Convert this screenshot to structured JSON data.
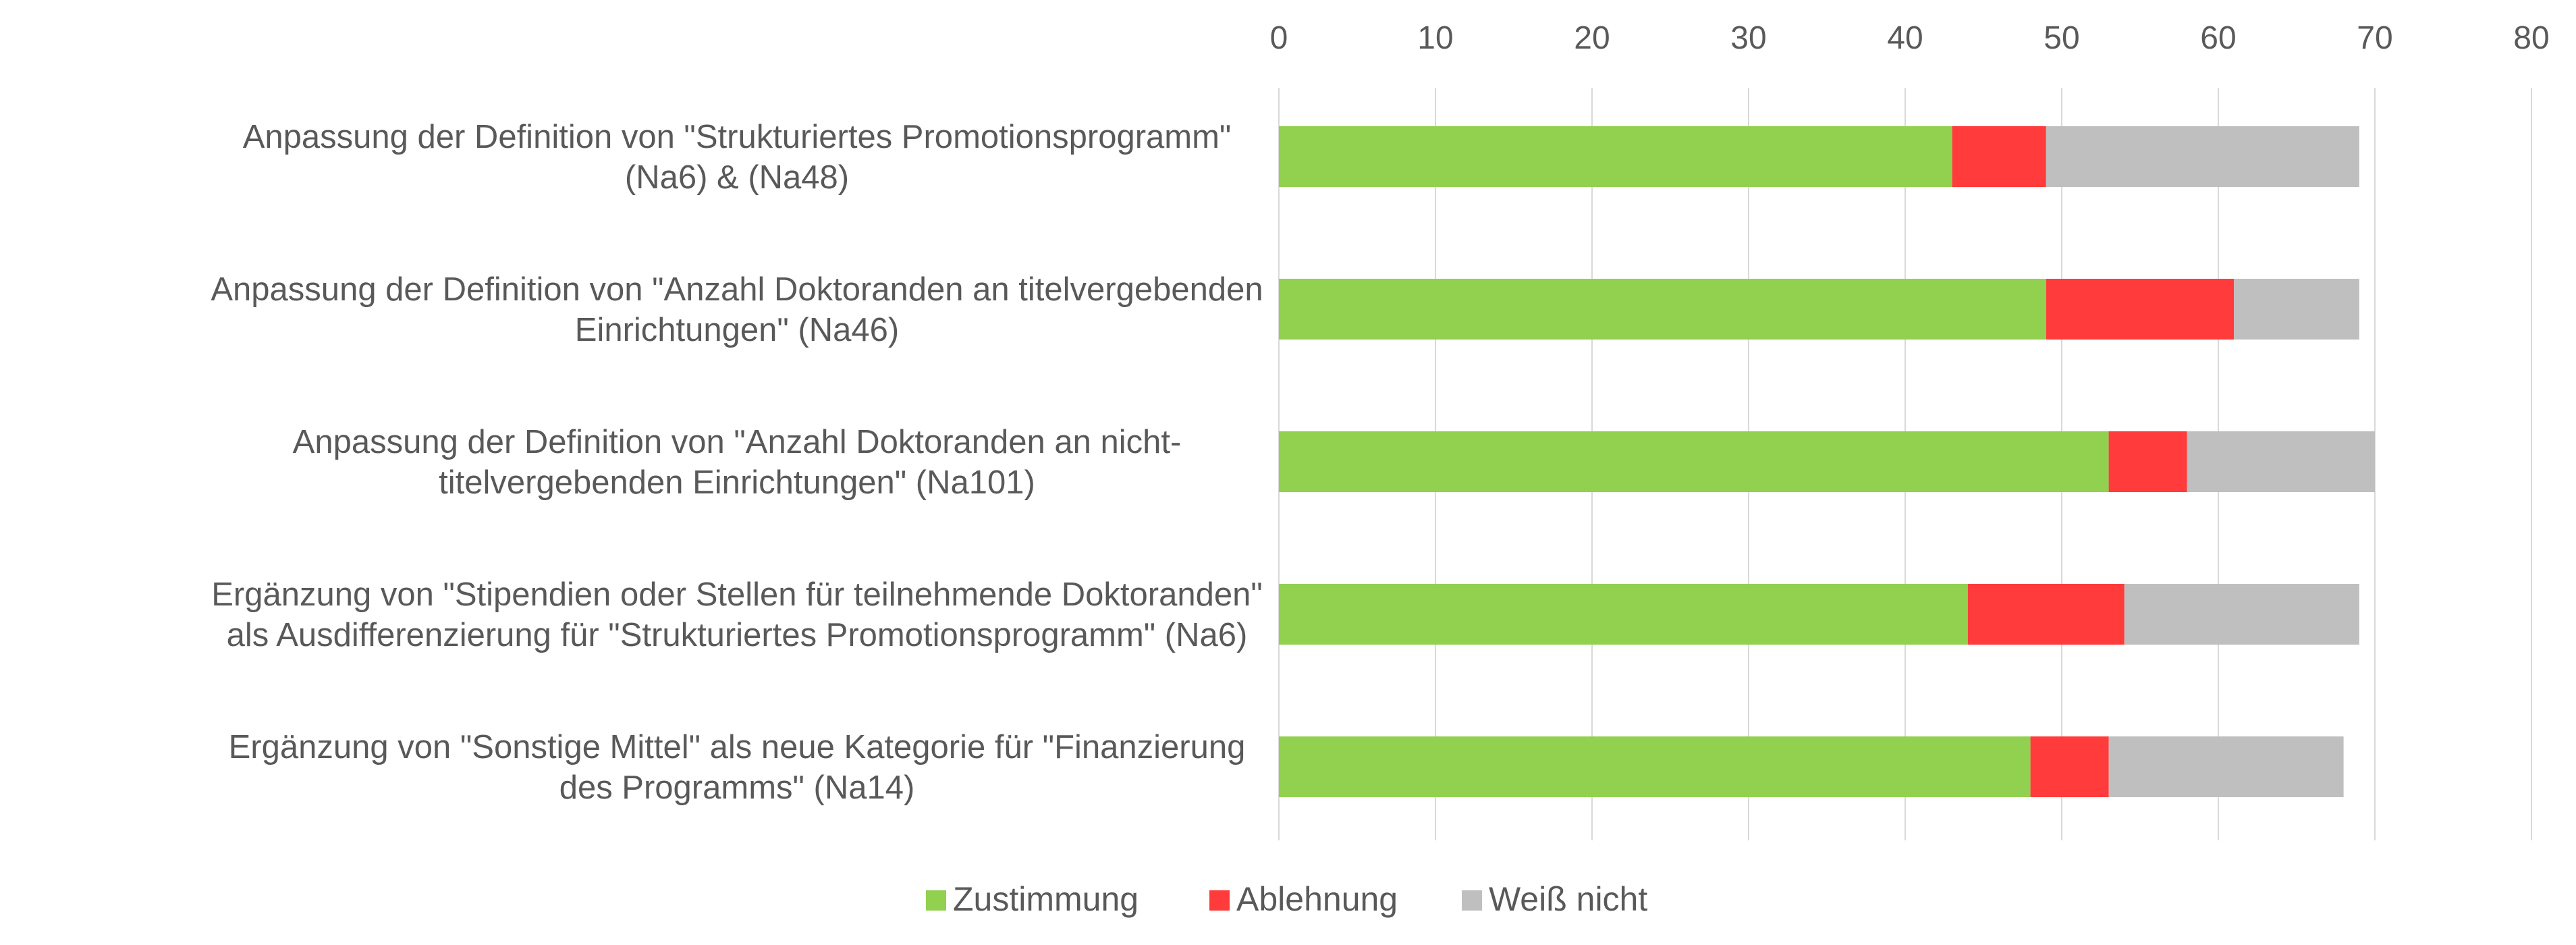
{
  "chart_data": {
    "type": "bar",
    "orientation": "horizontal",
    "stacked": true,
    "categories": [
      [
        "Anpassung der Definition von \"Strukturiertes Promotionsprogramm\"",
        "(Na6) & (Na48)"
      ],
      [
        "Anpassung der Definition von \"Anzahl Doktoranden an titelvergebenden",
        "Einrichtungen\" (Na46)"
      ],
      [
        "Anpassung der Definition von \"Anzahl Doktoranden an nicht-",
        "titelvergebenden Einrichtungen\" (Na101)"
      ],
      [
        "Ergänzung von \"Stipendien oder Stellen für teilnehmende Doktoranden\"",
        "als Ausdifferenzierung für \"Strukturiertes Promotionsprogramm\" (Na6)"
      ],
      [
        "Ergänzung von \"Sonstige Mittel\" als neue Kategorie für \"Finanzierung",
        "des Programms\" (Na14)"
      ]
    ],
    "series": [
      {
        "name": "Zustimmung",
        "color": "#92d050",
        "values": [
          43,
          49,
          53,
          44,
          48
        ]
      },
      {
        "name": "Ablehnung",
        "color": "#ff3b3b",
        "values": [
          6,
          12,
          5,
          10,
          5
        ]
      },
      {
        "name": "Weiß nicht",
        "color": "#bfbfbf",
        "values": [
          20,
          8,
          12,
          15,
          15
        ]
      }
    ],
    "xlim": [
      0,
      80
    ],
    "xticks": [
      "0",
      "10",
      "20",
      "30",
      "40",
      "50",
      "60",
      "70",
      "80"
    ],
    "x_axis_position": "top",
    "grid": true,
    "legend_position": "bottom"
  }
}
